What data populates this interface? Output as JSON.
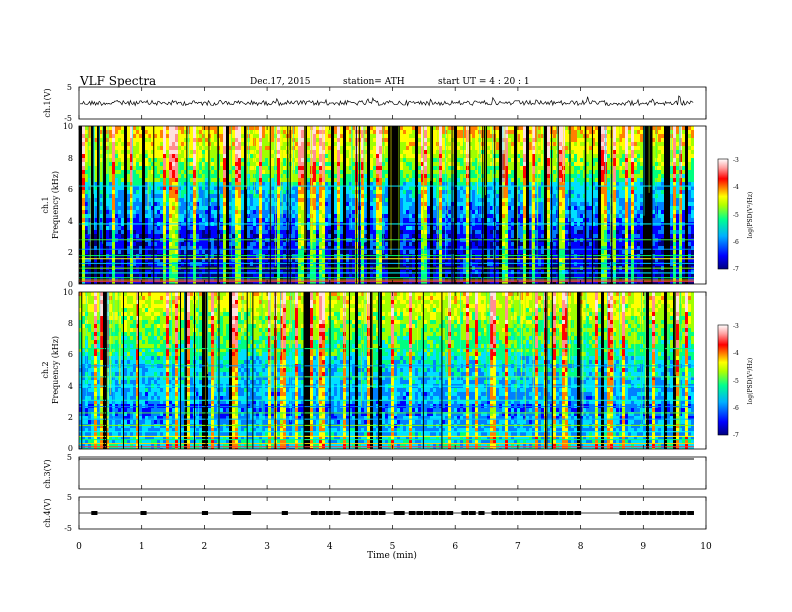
{
  "header": {
    "title": "VLF  Spectra",
    "date": "Dec.17, 2015",
    "station": "station= ATH",
    "start": "start  UT  =   4  : 20 : 1"
  },
  "chart_data": [
    {
      "id": "ch1_waveform",
      "type": "line",
      "ylabel": "ch.1(V)",
      "yticklabels": [
        "5",
        "-5"
      ],
      "ylim": [
        -5,
        5
      ],
      "xlim": [
        0,
        10
      ],
      "color": "#000000",
      "note_level": 0.2
    },
    {
      "id": "ch1_spectrogram",
      "type": "heatmap",
      "ylabel_line1": "ch.1",
      "ylabel_line2": "Frequency  (kHz)",
      "ylim": [
        0,
        10
      ],
      "xlim": [
        0,
        10
      ],
      "data_end_min": 9.8,
      "yticklabels": [
        "0",
        "2",
        "4",
        "6",
        "8",
        "10"
      ],
      "colorbar": {
        "label": "log(PSD(V²/Hz)",
        "range": [
          -7,
          -3
        ],
        "ticklabels": [
          "-3",
          "-4",
          "-5",
          "-6",
          "-7"
        ]
      }
    },
    {
      "id": "ch2_spectrogram",
      "type": "heatmap",
      "ylabel_line1": "ch.2",
      "ylabel_line2": "Frequency  (kHz)",
      "ylim": [
        0,
        10
      ],
      "xlim": [
        0,
        10
      ],
      "data_end_min": 9.8,
      "yticklabels": [
        "0",
        "2",
        "4",
        "6",
        "8",
        "10"
      ],
      "colorbar": {
        "label": "log(PSD(V²/Hz)",
        "range": [
          -7,
          -3
        ],
        "ticklabels": [
          "-3",
          "-4",
          "-5",
          "-6",
          "-7"
        ]
      }
    },
    {
      "id": "ch3_waveform",
      "type": "line",
      "ylabel": "ch.3(V)",
      "yticklabels": [
        "5"
      ],
      "ylim": [
        -5,
        5
      ],
      "xlim": [
        0,
        10
      ]
    },
    {
      "id": "ch4_waveform",
      "type": "line",
      "ylabel": "ch.4(V)",
      "yticklabels": [
        "5",
        "-5"
      ],
      "ylim": [
        -5,
        5
      ],
      "xlim": [
        0,
        10
      ],
      "level": 0.3
    }
  ],
  "xaxis": {
    "label": "Time  (min)",
    "ticklabels": [
      "0",
      "1",
      "2",
      "3",
      "4",
      "5",
      "6",
      "7",
      "8",
      "9",
      "10"
    ]
  },
  "colormap": [
    "#000080",
    "#0000ff",
    "#0080ff",
    "#00e0ff",
    "#00ff80",
    "#a0ff00",
    "#ffff00",
    "#ff8000",
    "#ff0000",
    "#ff9090",
    "#ffe0e0"
  ]
}
